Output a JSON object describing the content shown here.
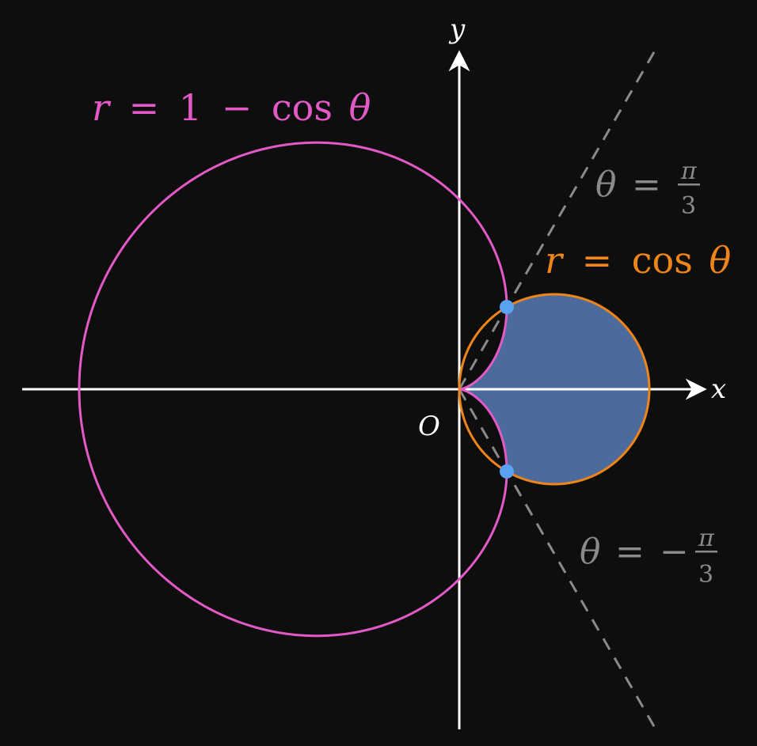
{
  "colors": {
    "background": "#0e0e0e",
    "axes": "#ffffff",
    "cardioid": "#e35ac7",
    "circle": "#f0851a",
    "region_fill": "#4a6b9b",
    "intersection_points": "#5aa1f2",
    "rays": "#8a8a8a"
  },
  "axes": {
    "x_label": "x",
    "y_label": "y",
    "origin_label": "O"
  },
  "curves": {
    "cardioid": {
      "r_var": "r",
      "eq": "=",
      "rhs_const": "1",
      "minus": "−",
      "func": "cos",
      "theta": "θ"
    },
    "circle": {
      "r_var": "r",
      "eq": "=",
      "func": "cos",
      "theta": "θ"
    }
  },
  "rays": {
    "upper": {
      "theta": "θ",
      "eq": "=",
      "sign": "",
      "numerator": "π",
      "denominator": "3",
      "angle_rad": 1.0471975512
    },
    "lower": {
      "theta": "θ",
      "eq": "=",
      "sign": "−",
      "numerator": "π",
      "denominator": "3",
      "angle_rad": -1.0471975512
    }
  },
  "shaded_region": {
    "description_bound_outer": "r = cos θ",
    "description_bound_inner": "r = 1 − cos θ",
    "theta_range_rad": [
      -1.0471975512,
      1.0471975512
    ]
  },
  "intersections": [
    {
      "r": 0.5,
      "theta_rad": 1.0471975512
    },
    {
      "r": 0.5,
      "theta_rad": -1.0471975512
    }
  ]
}
